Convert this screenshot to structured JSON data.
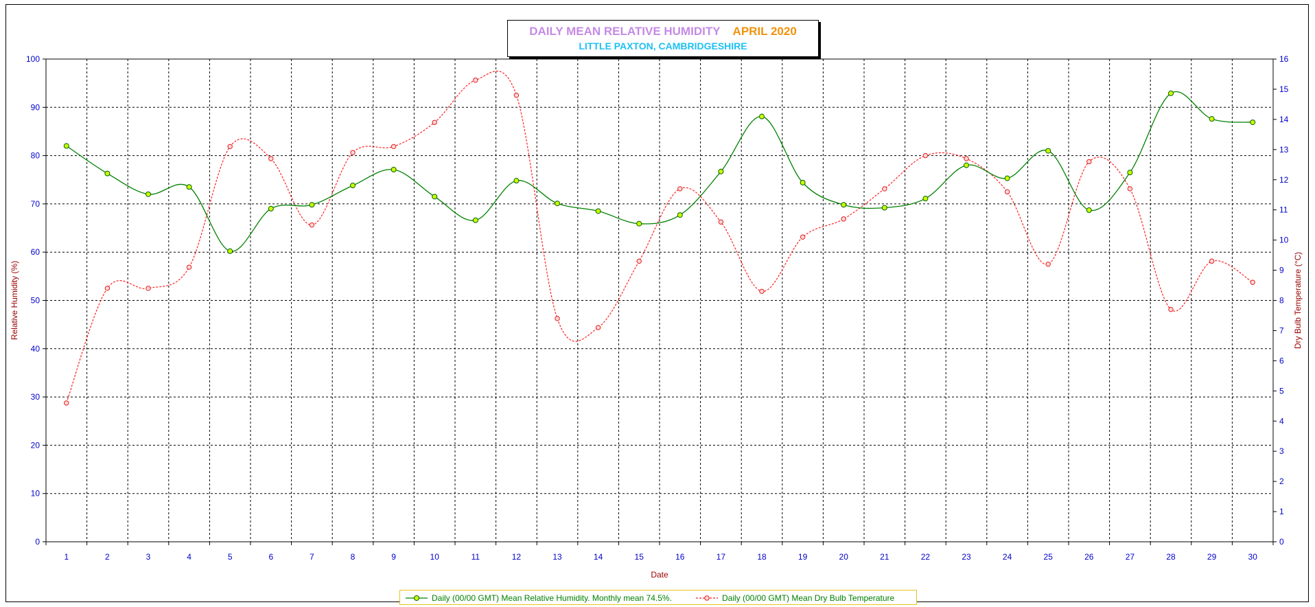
{
  "title": {
    "main": "DAILY MEAN RELATIVE HUMIDITY",
    "month": "APRIL 2020",
    "subtitle": "LITTLE PAXTON, CAMBRIDGESHIRE"
  },
  "colors": {
    "humidity": "#008000",
    "humidity_marker": "#ccff00",
    "temperature": "#ff2020",
    "tick_labels": "#0000cc",
    "axis_titles": "#990000",
    "title_main": "#c58ae6",
    "title_month": "#f2920c",
    "title_sub": "#1ec0f2",
    "legend_border": "#e8c31e"
  },
  "chart_data": {
    "type": "line",
    "xlabel": "Date",
    "ylabel": "Relative Humidity (%)",
    "y2label": "Dry Bulb Temperature (°C)",
    "ylim": [
      0,
      100
    ],
    "y2lim": [
      0,
      16
    ],
    "yticks": [
      "0",
      "10",
      "20",
      "30",
      "40",
      "50",
      "60",
      "70",
      "80",
      "90",
      "100"
    ],
    "y2ticks": [
      "0",
      "1",
      "2",
      "3",
      "4",
      "5",
      "6",
      "7",
      "8",
      "9",
      "10",
      "11",
      "12",
      "13",
      "14",
      "15",
      "16"
    ],
    "grid": true,
    "legend_position": "bottom",
    "x": [
      1,
      2,
      3,
      4,
      5,
      6,
      7,
      8,
      9,
      10,
      11,
      12,
      13,
      14,
      15,
      16,
      17,
      18,
      19,
      20,
      21,
      22,
      23,
      24,
      25,
      26,
      27,
      28,
      29,
      30
    ],
    "series": [
      {
        "name": "Daily (00/00 GMT) Mean Relative Humidity. Monthly mean 74.5%.",
        "axis": "left",
        "style": "solid",
        "values": [
          82.0,
          76.3,
          72.0,
          73.5,
          60.2,
          69.0,
          69.8,
          73.8,
          77.1,
          71.5,
          66.6,
          74.8,
          70.1,
          68.5,
          65.9,
          67.7,
          76.7,
          88.1,
          74.4,
          69.8,
          69.2,
          71.1,
          78.0,
          75.3,
          81.0,
          68.7,
          76.5,
          92.9,
          87.6,
          86.9
        ]
      },
      {
        "name": "Daily (00/00 GMT) Mean Dry Bulb Temperature",
        "axis": "right",
        "style": "dashed",
        "values": [
          4.6,
          8.4,
          8.4,
          9.1,
          13.1,
          12.7,
          10.5,
          12.9,
          13.1,
          13.9,
          15.3,
          14.8,
          7.4,
          7.1,
          9.3,
          11.7,
          10.6,
          8.3,
          10.1,
          10.7,
          11.7,
          12.8,
          12.7,
          11.6,
          9.2,
          12.6,
          11.7,
          7.7,
          9.3,
          8.6
        ]
      }
    ]
  }
}
